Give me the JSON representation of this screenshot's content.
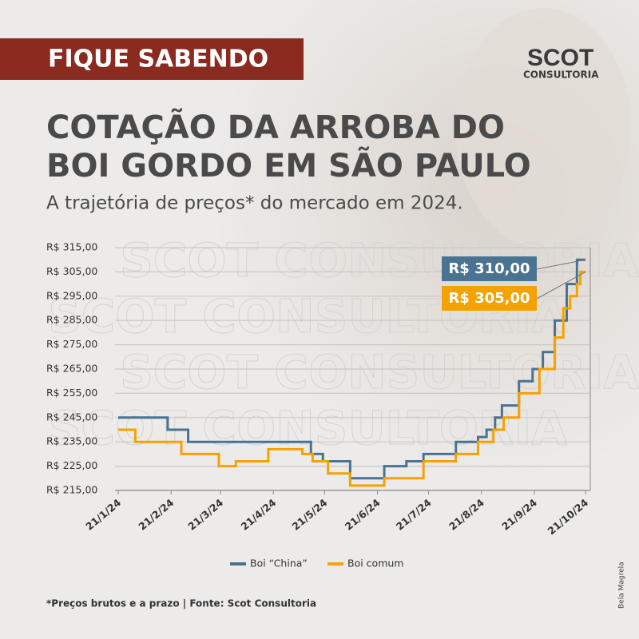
{
  "banner": "FIQUE SABENDO",
  "logo": {
    "name": "SCOT",
    "sub": "CONSULTORIA"
  },
  "chart_data": {
    "type": "line",
    "step": true,
    "title": [
      "COTAÇÃO DA ARROBA DO",
      "BOI GORDO EM SÃO PAULO"
    ],
    "subtitle": "A trajetória de preços* do mercado em 2024.",
    "xlim": [
      "21/1/24",
      "21/10/24"
    ],
    "xticks": [
      "21/1/24",
      "21/2/24",
      "21/3/24",
      "21/4/24",
      "21/5/24",
      "21/6/24",
      "21/7/24",
      "21/8/24",
      "21/9/24",
      "21/10/24"
    ],
    "ylim": [
      215,
      315
    ],
    "yticks": [
      {
        "value": 215,
        "label": "R$ 215,00"
      },
      {
        "value": 225,
        "label": "R$ 225,00"
      },
      {
        "value": 235,
        "label": "R$ 235,00"
      },
      {
        "value": 245,
        "label": "R$ 245,00"
      },
      {
        "value": 255,
        "label": "R$ 255,00"
      },
      {
        "value": 265,
        "label": "R$ 265,00"
      },
      {
        "value": 275,
        "label": "R$ 275,00"
      },
      {
        "value": 285,
        "label": "R$ 285,00"
      },
      {
        "value": 295,
        "label": "R$ 295,00"
      },
      {
        "value": 305,
        "label": "R$ 305,00"
      },
      {
        "value": 315,
        "label": "R$ 315,00"
      }
    ],
    "grid": true,
    "series": [
      {
        "name": "Boi “China”",
        "color": "#4a7391",
        "x": [
          "21/1/24",
          "19/2/24",
          "2/3/24",
          "13/5/24",
          "20/5/24",
          "5/6/24",
          "25/6/24",
          "8/7/24",
          "18/7/24",
          "6/8/24",
          "19/8/24",
          "24/8/24",
          "29/8/24",
          "2/9/24",
          "12/9/24",
          "20/9/24",
          "26/9/24",
          "3/10/24",
          "10/10/24",
          "16/10/24",
          "21/10/24"
        ],
        "values": [
          245,
          240,
          235,
          230,
          227,
          220,
          225,
          227,
          230,
          235,
          237,
          240,
          245,
          250,
          260,
          265,
          272,
          285,
          300,
          310,
          310
        ],
        "value_labels": [
          null,
          null,
          null,
          null,
          null,
          null,
          null,
          null,
          null,
          null,
          null,
          null,
          null,
          null,
          null,
          null,
          null,
          null,
          null,
          null,
          "R$ 310,00"
        ]
      },
      {
        "name": "Boi comum",
        "color": "#f5a100",
        "x": [
          "21/1/24",
          "31/1/24",
          "27/2/24",
          "20/3/24",
          "30/3/24",
          "18/4/24",
          "8/5/24",
          "14/5/24",
          "23/5/24",
          "5/6/24",
          "25/6/24",
          "18/7/24",
          "6/8/24",
          "19/8/24",
          "28/8/24",
          "3/9/24",
          "12/9/24",
          "24/9/24",
          "3/10/24",
          "8/10/24",
          "12/10/24",
          "16/10/24",
          "18/10/24",
          "21/10/24"
        ],
        "values": [
          240,
          235,
          230,
          225,
          227,
          232,
          230,
          227,
          222,
          217,
          220,
          227,
          230,
          235,
          240,
          245,
          255,
          265,
          278,
          290,
          295,
          300,
          305,
          305
        ],
        "value_labels": [
          null,
          null,
          null,
          null,
          null,
          null,
          null,
          null,
          null,
          null,
          null,
          null,
          null,
          null,
          null,
          null,
          null,
          null,
          null,
          null,
          null,
          null,
          null,
          "R$ 305,00"
        ]
      }
    ]
  },
  "watermark": "SCOT CONSULTORIA",
  "footnote": "*Preços brutos e a prazo  |  Fonte: Scot Consultoria",
  "credit": "Bela Magrela"
}
